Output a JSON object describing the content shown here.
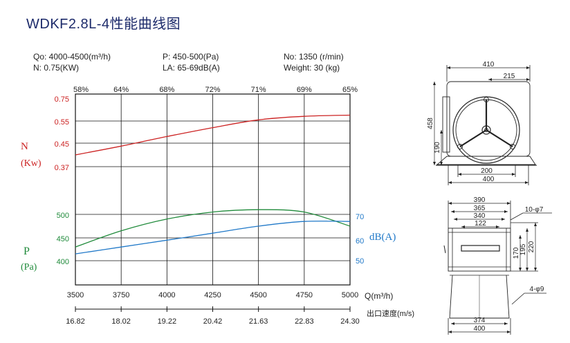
{
  "title": "WDKF2.8L-4性能曲线图",
  "specs": {
    "q": "Qo: 4000-4500(m³/h)",
    "n": "N: 0.75(KW)",
    "p": "P: 450-500(Pa)",
    "la": "LA: 65-69dB(A)",
    "no": "No: 1350 (r/min)",
    "weight": "Weight: 30 (kg)"
  },
  "chart_data": {
    "type": "line",
    "x": [
      3500,
      3750,
      4000,
      4250,
      4500,
      4750,
      5000
    ],
    "x_tick_labels": [
      "3500",
      "3750",
      "4000",
      "4250",
      "4500",
      "4750",
      "5000"
    ],
    "xlabel": "Q(m³/h)",
    "velocity_ticks": [
      "16.82",
      "18.02",
      "19.22",
      "20.42",
      "21.63",
      "22.83",
      "24.30"
    ],
    "velocity_label": "出口速度(m/s)",
    "efficiency_ticks": [
      "58%",
      "64%",
      "68%",
      "72%",
      "71%",
      "69%",
      "65%"
    ],
    "grid": true,
    "series": [
      {
        "name": "N (Kw)",
        "axis": "power",
        "color": "#cc2222",
        "values": [
          0.41,
          0.44,
          0.48,
          0.52,
          0.56,
          0.59,
          0.6
        ]
      },
      {
        "name": "P (Pa)",
        "axis": "pressure",
        "color": "#1f8a3a",
        "values": [
          430,
          465,
          490,
          505,
          510,
          505,
          475
        ]
      },
      {
        "name": "dB(A)",
        "axis": "sound",
        "color": "#1f78c8",
        "values": [
          53,
          56,
          59,
          62,
          65,
          67,
          67
        ]
      }
    ],
    "axes": {
      "power": {
        "label_top": "N",
        "label_bottom": "(Kw)",
        "ticks": [
          "0.75",
          "0.55",
          "0.45",
          "0.37"
        ],
        "color": "#cc2222"
      },
      "pressure": {
        "label_top": "P",
        "label_bottom": "(Pa)",
        "ticks": [
          "500",
          "450",
          "400"
        ],
        "color": "#1f8a3a"
      },
      "sound": {
        "label": "dB(A)",
        "ticks": [
          "70",
          "60",
          "50"
        ],
        "color": "#1f78c8"
      }
    }
  },
  "drawing_top": {
    "dims": [
      "410",
      "215",
      "458",
      "190",
      "200",
      "400"
    ]
  },
  "drawing_bottom": {
    "dims": [
      "390",
      "365",
      "340",
      "122",
      "170",
      "195",
      "220",
      "374",
      "400"
    ],
    "holes_top": "10-φ7",
    "holes_bottom": "4-φ9"
  }
}
